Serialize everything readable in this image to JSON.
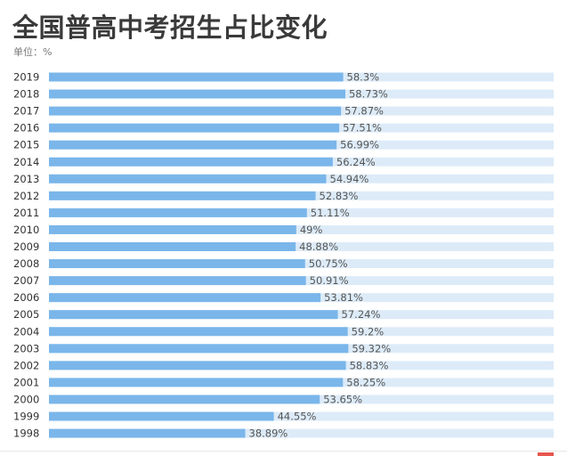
{
  "title": "全国普高中考招生占比变化",
  "unit_label": "单位：%",
  "colors": {
    "bar": "#7ab6ea",
    "track": "#ddebf8",
    "accent": "#e8554e"
  },
  "chart_data": {
    "type": "bar",
    "orientation": "horizontal",
    "title": "全国普高中考招生占比变化",
    "unit": "%",
    "xlim": [
      0,
      100
    ],
    "grid": false,
    "categories": [
      "2019",
      "2018",
      "2017",
      "2016",
      "2015",
      "2014",
      "2013",
      "2012",
      "2011",
      "2010",
      "2009",
      "2008",
      "2007",
      "2006",
      "2005",
      "2004",
      "2003",
      "2002",
      "2001",
      "2000",
      "1999",
      "1998"
    ],
    "values": [
      58.3,
      58.73,
      57.87,
      57.51,
      56.99,
      56.24,
      54.94,
      52.83,
      51.11,
      49,
      48.88,
      50.75,
      50.91,
      53.81,
      57.24,
      59.2,
      59.32,
      58.83,
      58.25,
      53.65,
      44.55,
      38.89
    ],
    "value_labels": [
      "58.3%",
      "58.73%",
      "57.87%",
      "57.51%",
      "56.99%",
      "56.24%",
      "54.94%",
      "52.83%",
      "51.11%",
      "49%",
      "48.88%",
      "50.75%",
      "50.91%",
      "53.81%",
      "57.24%",
      "59.2%",
      "59.32%",
      "58.83%",
      "58.25%",
      "53.65%",
      "44.55%",
      "38.89%"
    ]
  }
}
